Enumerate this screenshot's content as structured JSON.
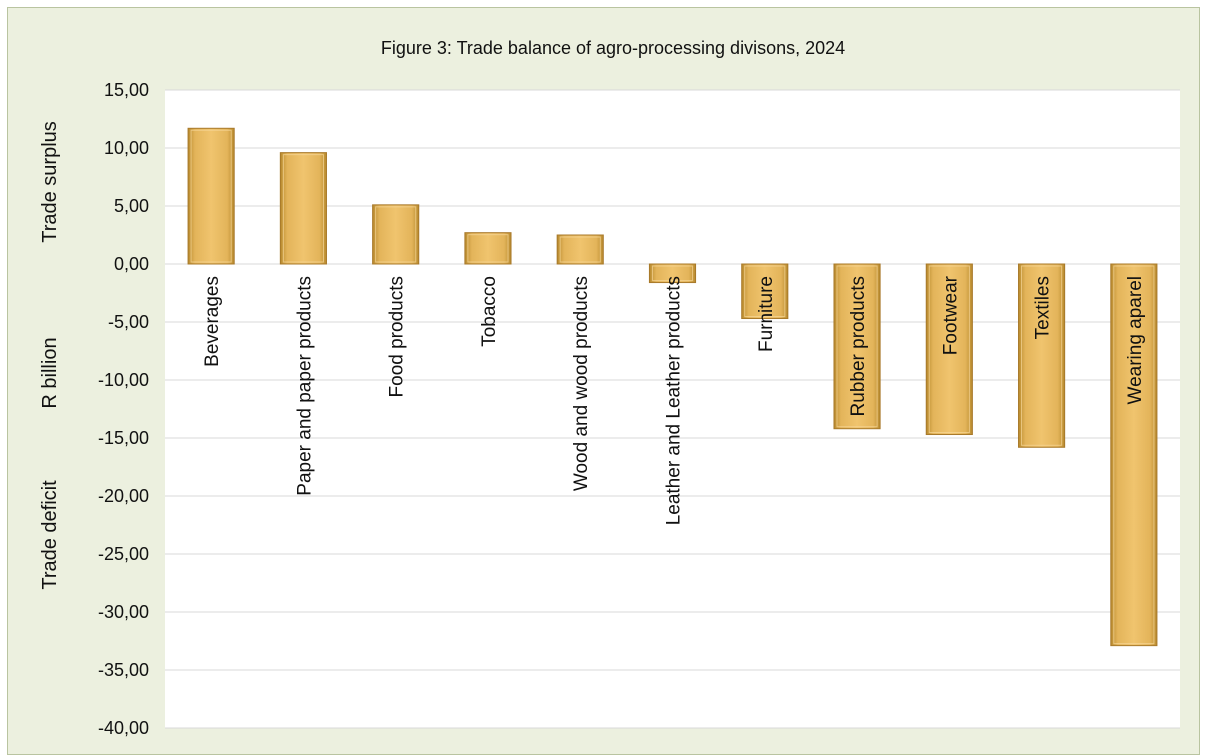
{
  "chart_data": {
    "type": "bar",
    "title": "Figure 3: Trade balance of agro-processing divisons, 2024",
    "categories": [
      "Beverages",
      "Paper and paper products",
      "Food products",
      "Tobacco",
      "Wood and wood products",
      "Leather and Leather products",
      "Furniture",
      "Rubber products",
      "Footwear",
      "Textiles",
      "Wearing aparel"
    ],
    "values": [
      11.7,
      9.6,
      5.1,
      2.7,
      2.5,
      -1.6,
      -4.7,
      -14.2,
      -14.7,
      -15.8,
      -32.9
    ],
    "ylim": [
      -40,
      15
    ],
    "yticks": [
      "15,00",
      "10,00",
      "5,00",
      "0,00",
      "-5,00",
      "-10,00",
      "-15,00",
      "-20,00",
      "-25,00",
      "-30,00",
      "-35,00",
      "-40,00"
    ],
    "ylabels": {
      "top": "Trade surplus",
      "middle": "R billion",
      "bottom": "Trade deficit"
    },
    "grid": true,
    "colors": {
      "background": "#ecf0df",
      "plot_area": "#ffffff",
      "bar": "#e8b85c",
      "gridline": "#d9d9d9"
    }
  }
}
